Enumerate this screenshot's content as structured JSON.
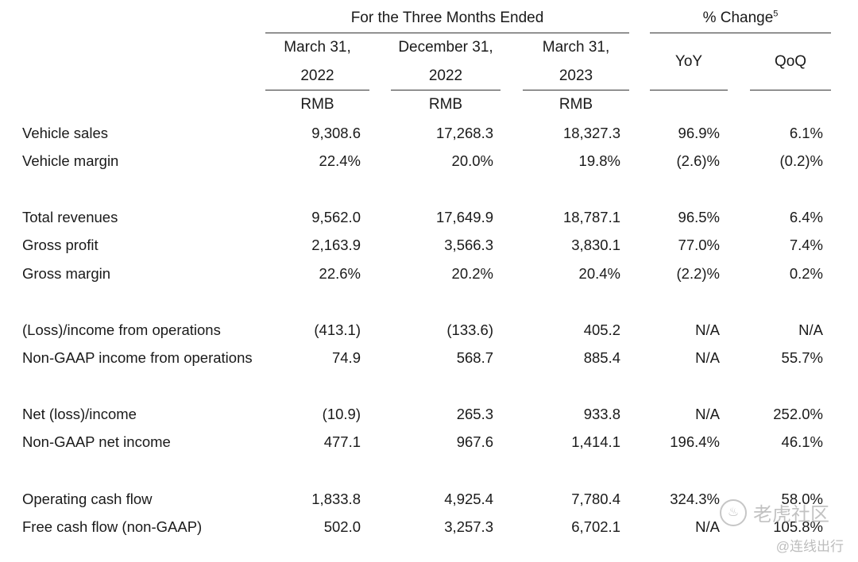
{
  "header": {
    "group_title": "For the Three Months Ended",
    "change_title": "% Change",
    "change_footnote": "5",
    "periods": [
      {
        "line1": "March 31,",
        "line2": "2022",
        "currency": "RMB"
      },
      {
        "line1": "December 31,",
        "line2": "2022",
        "currency": "RMB"
      },
      {
        "line1": "March 31,",
        "line2": "2023",
        "currency": "RMB"
      }
    ],
    "change_cols": [
      "YoY",
      "QoQ"
    ]
  },
  "rows": [
    {
      "label": "Vehicle sales",
      "v1": "9,308.6",
      "v2": "17,268.3",
      "v3": "18,327.3",
      "yoy": "96.9%",
      "qoq": "6.1%"
    },
    {
      "label": "Vehicle margin",
      "v1": "22.4%",
      "v2": "20.0%",
      "v3": "19.8%",
      "yoy": "(2.6)%",
      "qoq": "(0.2)%"
    },
    {
      "label": "Total revenues",
      "v1": "9,562.0",
      "v2": "17,649.9",
      "v3": "18,787.1",
      "yoy": "96.5%",
      "qoq": "6.4%"
    },
    {
      "label": "Gross profit",
      "v1": "2,163.9",
      "v2": "3,566.3",
      "v3": "3,830.1",
      "yoy": "77.0%",
      "qoq": "7.4%"
    },
    {
      "label": "Gross margin",
      "v1": "22.6%",
      "v2": "20.2%",
      "v3": "20.4%",
      "yoy": "(2.2)%",
      "qoq": "0.2%"
    },
    {
      "label": "(Loss)/income from operations",
      "v1": "(413.1)",
      "v2": "(133.6)",
      "v3": "405.2",
      "yoy": "N/A",
      "qoq": "N/A"
    },
    {
      "label": "Non-GAAP income from operations",
      "v1": "74.9",
      "v2": "568.7",
      "v3": "885.4",
      "yoy": "N/A",
      "qoq": "55.7%"
    },
    {
      "label": "Net (loss)/income",
      "v1": "(10.9)",
      "v2": "265.3",
      "v3": "933.8",
      "yoy": "N/A",
      "qoq": "252.0%"
    },
    {
      "label": "Non-GAAP net income",
      "v1": "477.1",
      "v2": "967.6",
      "v3": "1,414.1",
      "yoy": "196.4%",
      "qoq": "46.1%"
    },
    {
      "label": "Operating cash flow",
      "v1": "1,833.8",
      "v2": "4,925.4",
      "v3": "7,780.4",
      "yoy": "324.3%",
      "qoq": "58.0%"
    },
    {
      "label": "Free cash flow (non-GAAP)",
      "v1": "502.0",
      "v2": "3,257.3",
      "v3": "6,702.1",
      "yoy": "N/A",
      "qoq": "105.8%"
    }
  ],
  "watermark": {
    "logo_text": "老虎社区",
    "handle": "@连线出行"
  }
}
